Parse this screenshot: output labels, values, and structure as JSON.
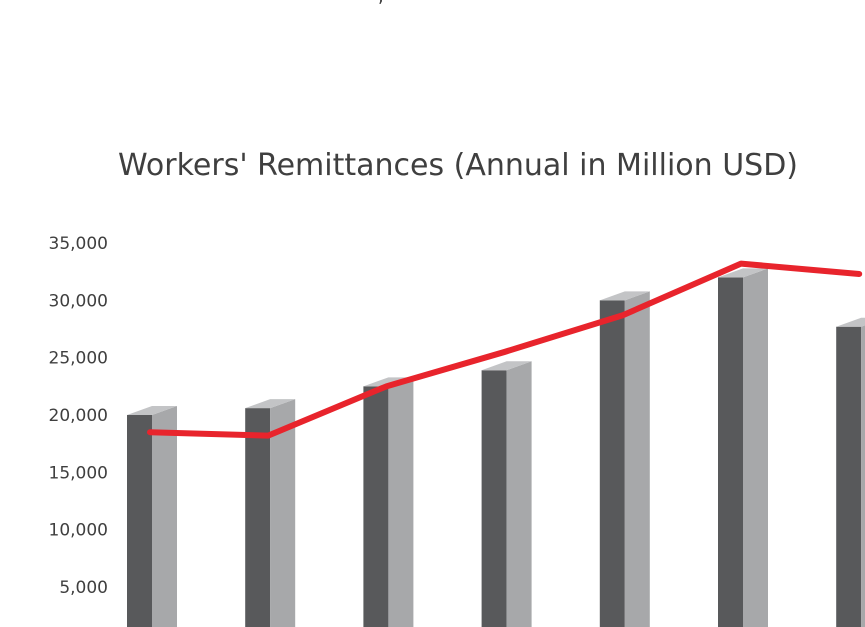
{
  "page": {
    "top_fragment": ","
  },
  "chart_data": {
    "type": "bar",
    "title": "Workers' Remittances (Annual in Million USD)",
    "xlabel": "",
    "ylabel": "",
    "yticks": [
      "5,000",
      "10,000",
      "15,000",
      "20,000",
      "25,000",
      "30,000",
      "35,000"
    ],
    "ytick_values": [
      5000,
      10000,
      15000,
      20000,
      25000,
      30000,
      35000
    ],
    "ylim": [
      2000,
      36500
    ],
    "categories": [
      "",
      "",
      "",
      "",
      "",
      "",
      ""
    ],
    "series": [
      {
        "kind": "bar",
        "values": [
          20000,
          20600,
          22500,
          23900,
          30000,
          32000,
          27700
        ]
      },
      {
        "kind": "line",
        "values": [
          18500,
          18200,
          22500,
          25500,
          28700,
          33200,
          32300
        ]
      }
    ],
    "colors": {
      "bar_front": "#58595b",
      "bar_side": "#a7a8aa",
      "bar_top": "#c3c4c6",
      "line": "#e8242c",
      "text": "#3f3f3f"
    },
    "grid": false,
    "legend": "none"
  }
}
